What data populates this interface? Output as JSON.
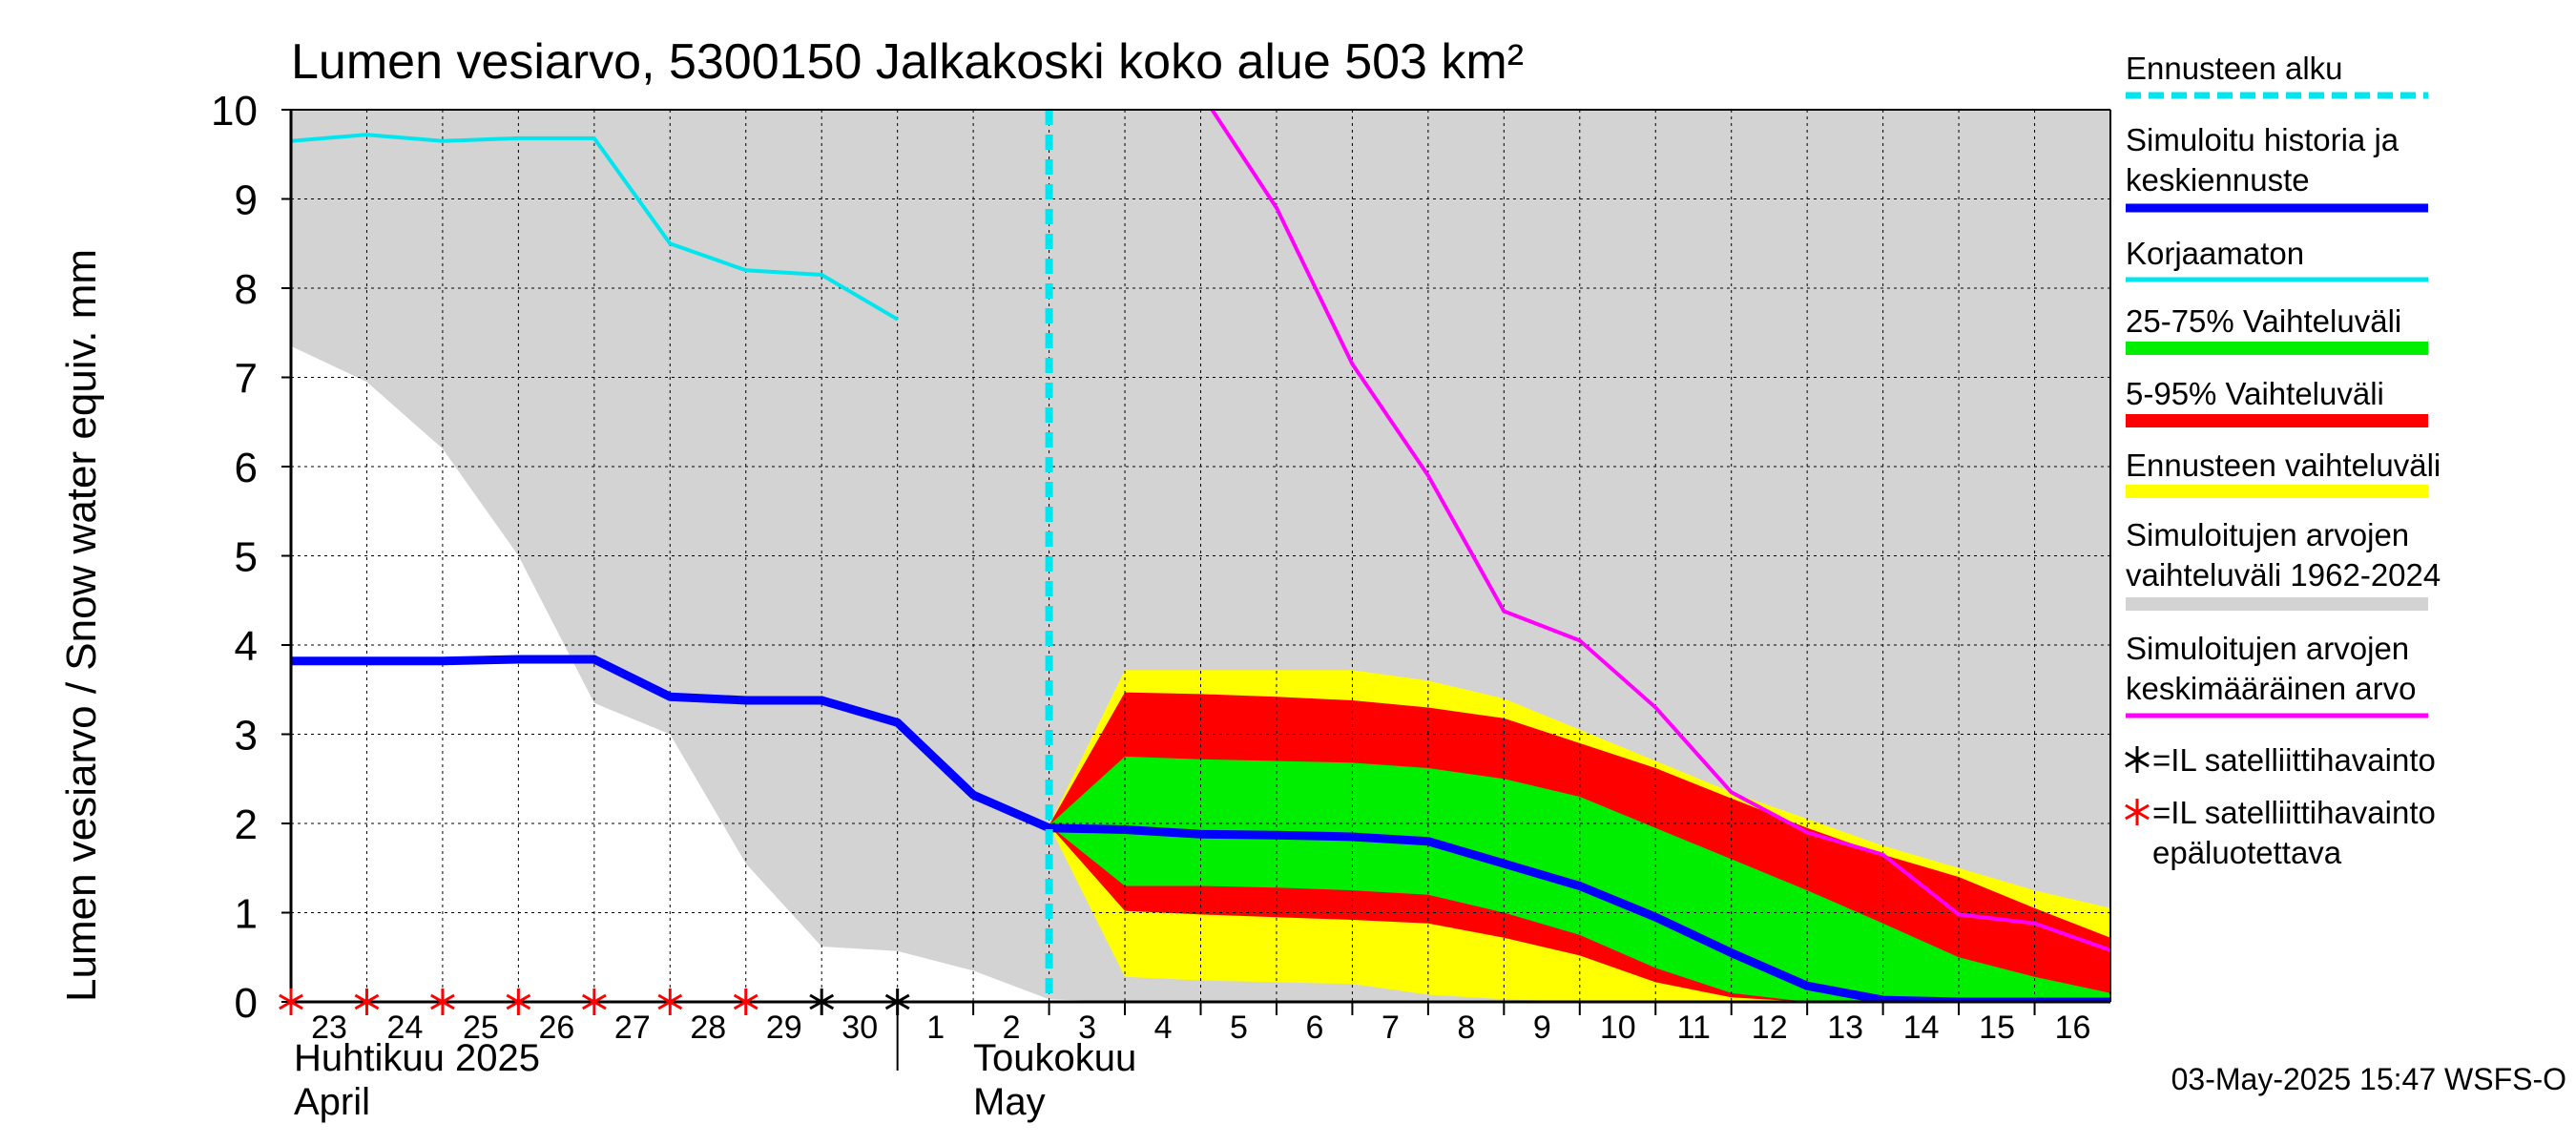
{
  "chart_data": {
    "type": "area",
    "title": "Lumen vesiarvo, 5300150 Jalkakoski koko alue 503 km²",
    "ylabel": "Lumen vesiarvo / Snow water equiv.    mm",
    "ylim": [
      0,
      10
    ],
    "yticks": [
      "0",
      "1",
      "2",
      "3",
      "4",
      "5",
      "6",
      "7",
      "8",
      "9",
      "10"
    ],
    "x_start_day": 23,
    "x_end": 16.75,
    "x_ticks": [
      {
        "label": "23",
        "x": 0
      },
      {
        "label": "24",
        "x": 1
      },
      {
        "label": "25",
        "x": 2
      },
      {
        "label": "26",
        "x": 3
      },
      {
        "label": "27",
        "x": 4
      },
      {
        "label": "28",
        "x": 5
      },
      {
        "label": "29",
        "x": 6
      },
      {
        "label": "30",
        "x": 7
      },
      {
        "label": "1",
        "x": 8
      },
      {
        "label": "2",
        "x": 9
      },
      {
        "label": "3",
        "x": 10
      },
      {
        "label": "4",
        "x": 11
      },
      {
        "label": "5",
        "x": 12
      },
      {
        "label": "6",
        "x": 13
      },
      {
        "label": "7",
        "x": 14
      },
      {
        "label": "8",
        "x": 15
      },
      {
        "label": "9",
        "x": 16
      },
      {
        "label": "10",
        "x": 17
      },
      {
        "label": "11",
        "x": 18
      },
      {
        "label": "12",
        "x": 19
      },
      {
        "label": "13",
        "x": 20
      },
      {
        "label": "14",
        "x": 21
      },
      {
        "label": "15",
        "x": 22
      },
      {
        "label": "16",
        "x": 23
      }
    ],
    "month_labels": {
      "april_fi": "Huhtikuu  2025",
      "april_en": "April",
      "may_fi": "Toukokuu",
      "may_en": "May"
    },
    "forecast_start_x": 10,
    "series": {
      "hist_range": {
        "name": "Simuloitujen arvojen vaihteluväli 1962-2024",
        "color": "#d3d3d3",
        "x": [
          0,
          1,
          2,
          3,
          4,
          5,
          6,
          7,
          8,
          9,
          10,
          11,
          12,
          13,
          14,
          15,
          16,
          17,
          18,
          19,
          20,
          21,
          22,
          23,
          24
        ],
        "upper": [
          10,
          10,
          10,
          10,
          10,
          10,
          10,
          10,
          10,
          10,
          10,
          10,
          10,
          10,
          10,
          10,
          10,
          10,
          10,
          10,
          10,
          10,
          10,
          10,
          10
        ],
        "lower": [
          7.35,
          6.95,
          6.2,
          5.0,
          3.35,
          3.0,
          1.55,
          0.62,
          0.57,
          0.35,
          0.03,
          0,
          0,
          0,
          0,
          0,
          0,
          0,
          0,
          0,
          0,
          0,
          0,
          0,
          0
        ]
      },
      "forecast_range": {
        "name": "Ennusteen vaihteluväli",
        "color": "#ffff00",
        "x": [
          10,
          11,
          12,
          13,
          14,
          15,
          16,
          17,
          18,
          19,
          20,
          21,
          22,
          23,
          24
        ],
        "upper": [
          1.98,
          3.72,
          3.72,
          3.72,
          3.72,
          3.6,
          3.4,
          3.05,
          2.7,
          2.35,
          2.05,
          1.75,
          1.5,
          1.25,
          1.05
        ],
        "lower": [
          1.98,
          0.28,
          0.24,
          0.22,
          0.2,
          0.08,
          0.03,
          0,
          0,
          0,
          0,
          0,
          0,
          0,
          0
        ]
      },
      "p5_95": {
        "name": "5-95% Vaihteluväli",
        "color": "#ff0000",
        "x": [
          10,
          11,
          12,
          13,
          14,
          15,
          16,
          17,
          18,
          19,
          20,
          21,
          22,
          23,
          24
        ],
        "upper": [
          1.98,
          3.47,
          3.45,
          3.42,
          3.38,
          3.3,
          3.18,
          2.9,
          2.62,
          2.28,
          1.95,
          1.65,
          1.4,
          1.05,
          0.72
        ],
        "lower": [
          1.98,
          1.02,
          0.98,
          0.95,
          0.92,
          0.88,
          0.72,
          0.52,
          0.22,
          0.05,
          0,
          0,
          0,
          0,
          0
        ]
      },
      "p25_75": {
        "name": "25-75% Vaihteluväli",
        "color": "#00ee00",
        "x": [
          10,
          11,
          12,
          13,
          14,
          15,
          16,
          17,
          18,
          19,
          20,
          21,
          22,
          23,
          24
        ],
        "upper": [
          1.98,
          2.75,
          2.72,
          2.7,
          2.68,
          2.62,
          2.5,
          2.3,
          1.95,
          1.6,
          1.25,
          0.88,
          0.5,
          0.28,
          0.1
        ],
        "lower": [
          1.98,
          1.3,
          1.3,
          1.28,
          1.25,
          1.2,
          1.0,
          0.75,
          0.38,
          0.1,
          0,
          0,
          0,
          0,
          0
        ]
      },
      "simulated": {
        "name": "Simuloitu historia ja keskiennuste",
        "color": "#0000ff",
        "x": [
          0,
          1,
          2,
          3,
          4,
          5,
          6,
          7,
          8,
          9,
          10,
          11,
          12,
          13,
          14,
          15,
          16,
          17,
          18,
          19,
          20,
          21,
          22,
          23,
          24
        ],
        "y": [
          3.82,
          3.82,
          3.82,
          3.84,
          3.84,
          3.42,
          3.38,
          3.38,
          3.13,
          2.32,
          1.95,
          1.93,
          1.88,
          1.87,
          1.85,
          1.8,
          1.55,
          1.3,
          0.95,
          0.55,
          0.18,
          0.02,
          0,
          0,
          0
        ]
      },
      "uncorrected": {
        "name": "Korjaamaton",
        "color": "#00e5ee",
        "x": [
          0,
          1,
          2,
          3,
          4,
          5,
          6,
          7,
          8
        ],
        "y": [
          9.65,
          9.72,
          9.65,
          9.68,
          9.68,
          8.5,
          8.2,
          8.15,
          7.65
        ]
      },
      "mean": {
        "name": "Simuloitujen arvojen keskimääräinen arvo",
        "color": "#ff00ff",
        "x": [
          12.15,
          13,
          14,
          15,
          16,
          17,
          18,
          19,
          20,
          21,
          22,
          23,
          24
        ],
        "y": [
          10,
          8.9,
          7.15,
          5.9,
          4.38,
          4.05,
          3.3,
          2.35,
          1.9,
          1.65,
          0.98,
          0.88,
          0.58
        ]
      }
    },
    "satellite_reliable_x": [
      7,
      8
    ],
    "satellite_unreliable_x": [
      0,
      1,
      2,
      3,
      4,
      5,
      6
    ],
    "legend": {
      "placement": "right",
      "items": [
        {
          "key": "forecast_start",
          "label": "Ennusteen alku",
          "color": "#00e5ee",
          "style": "dashed"
        },
        {
          "key": "simulated",
          "label": "Simuloitu historia ja keskiennuste",
          "color": "#0000ff",
          "style": "line"
        },
        {
          "key": "uncorrected",
          "label": "Korjaamaton",
          "color": "#00e5ee",
          "style": "line"
        },
        {
          "key": "p25_75",
          "label": "25-75% Vaihteluväli",
          "color": "#00ee00",
          "style": "band"
        },
        {
          "key": "p5_95",
          "label": "5-95% Vaihteluväli",
          "color": "#ff0000",
          "style": "band"
        },
        {
          "key": "forecast_range",
          "label": "Ennusteen vaihteluväli",
          "color": "#ffff00",
          "style": "band"
        },
        {
          "key": "hist_range",
          "label": "Simuloitujen arvojen vaihteluväli 1962-2024",
          "color": "#d3d3d3",
          "style": "band"
        },
        {
          "key": "mean",
          "label": "Simuloitujen arvojen keskimääräinen arvo",
          "color": "#ff00ff",
          "style": "line"
        },
        {
          "key": "sat_ok",
          "label": "=IL satelliittihavainto",
          "color": "#000000",
          "style": "marker"
        },
        {
          "key": "sat_bad",
          "label": "=IL satelliittihavainto epäluotettava",
          "color": "#ff0000",
          "style": "marker"
        }
      ]
    },
    "timestamp": "03-May-2025 15:47 WSFS-O"
  }
}
